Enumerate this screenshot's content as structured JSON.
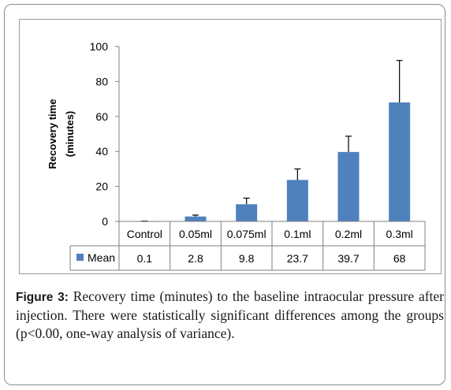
{
  "chart_data": {
    "type": "bar",
    "ylabel": [
      "Recovery time",
      "(minutes)"
    ],
    "ylim": [
      0,
      100
    ],
    "yticks": [
      0,
      20,
      40,
      60,
      80,
      100
    ],
    "grid": false,
    "bar_color": "#4f81bd",
    "categories": [
      "Control",
      "0.05ml",
      "0.075ml",
      "0.1ml",
      "0.2ml",
      "0.3ml"
    ],
    "series": [
      {
        "name": "Mean",
        "values": [
          0.1,
          2.8,
          9.8,
          23.7,
          39.7,
          68
        ],
        "value_labels": [
          "0.1",
          "2.8",
          "9.8",
          "23.7",
          "39.7",
          "68"
        ],
        "error_upper": [
          0.1,
          0.8,
          3.5,
          6.3,
          9.0,
          24.0
        ]
      }
    ]
  },
  "caption": {
    "label": "Figure 3:",
    "text": " Recovery time (minutes) to the baseline intraocular pressure after injection. There were statistically significant differences among the groups (p<0.00, one-way analysis of variance)."
  }
}
